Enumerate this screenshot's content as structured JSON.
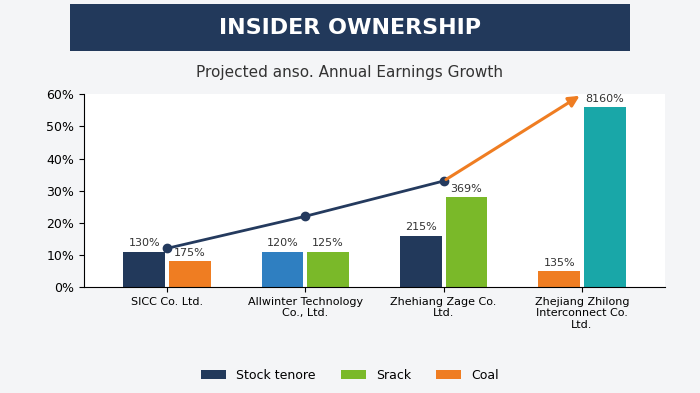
{
  "chart_data": {
    "type": "bar",
    "title": "INSIDER OWNERSHIP",
    "subtitle": "Projected anso. Annual Earnings Growth",
    "categories": [
      "SICC Co. Ltd.",
      "Allwinter Technology Co., Ltd.",
      "Zhehiang Zage Co. Ltd.",
      "Zhejiang Zhilong Interconnect Co. Ltd."
    ],
    "series": [
      {
        "name": "Stock tenore",
        "color": "#22395b",
        "values": [
          11,
          null,
          16,
          null
        ],
        "annotations": [
          "130%",
          null,
          "215%",
          null
        ]
      },
      {
        "color": "#2f7fc1",
        "values": [
          null,
          11,
          null,
          null
        ],
        "annotations": [
          null,
          "120%",
          null,
          null
        ]
      },
      {
        "name": "Srack",
        "color": "#7ab929",
        "values": [
          null,
          11,
          28,
          null
        ],
        "annotations": [
          null,
          "125%",
          "369%",
          null
        ]
      },
      {
        "name": "Coal",
        "color": "#ef7d22",
        "values": [
          8,
          null,
          null,
          5
        ],
        "annotations": [
          "175%",
          null,
          null,
          "135%"
        ]
      },
      {
        "color": "#19a7a8",
        "values": [
          null,
          null,
          null,
          56
        ],
        "annotations": [
          null,
          null,
          null,
          "8160%"
        ]
      },
      {
        "type": "line",
        "color": "#243a5e",
        "marker": "o",
        "values": [
          12,
          22,
          33,
          null
        ]
      },
      {
        "type": "line",
        "color": "#ef7d22",
        "line_style": "arrow",
        "values": [
          null,
          null,
          33,
          60
        ]
      }
    ],
    "ylim": [
      0,
      60
    ],
    "yticks": [
      {
        "value": 0,
        "label": "0%"
      },
      {
        "value": 10,
        "label": "10%"
      },
      {
        "value": 20,
        "label": "20%"
      },
      {
        "value": 30,
        "label": "30%"
      },
      {
        "value": 40,
        "label": "40%"
      },
      {
        "value": 50,
        "label": "50%"
      },
      {
        "value": 60,
        "label": "60%"
      }
    ],
    "grid": false,
    "legend": "lower center"
  }
}
